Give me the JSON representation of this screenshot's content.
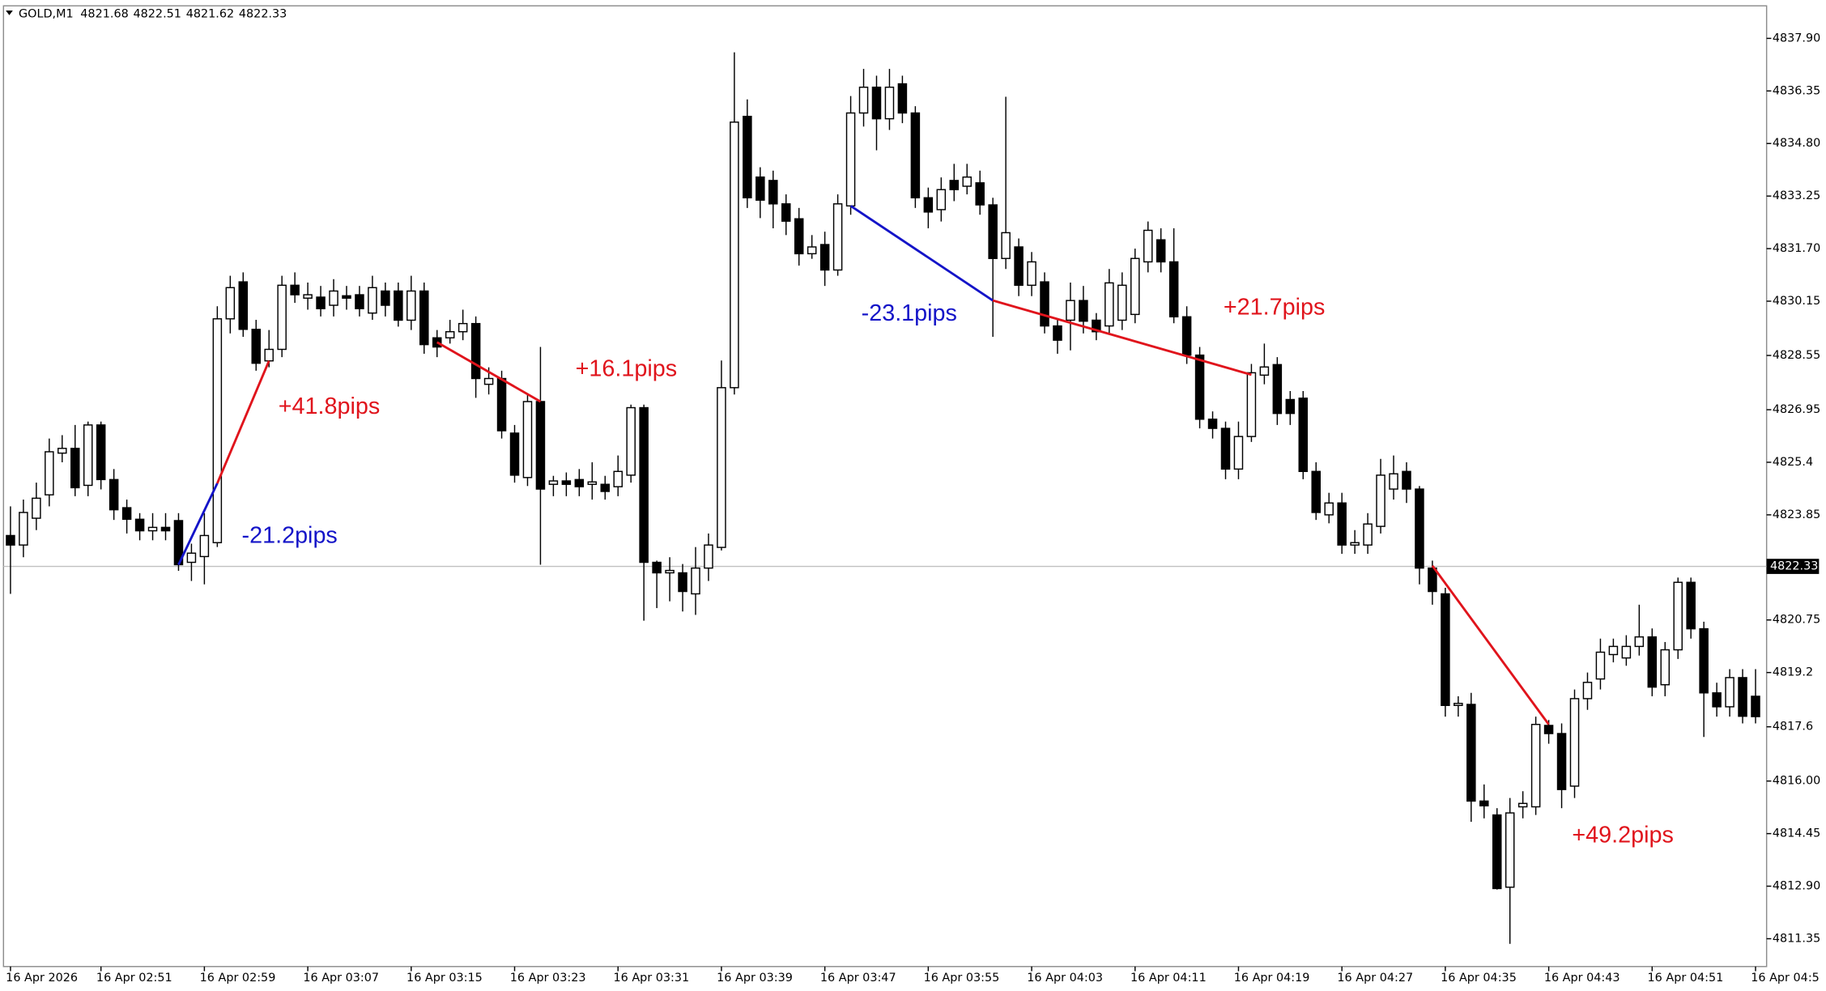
{
  "chart_data": {
    "type": "candlestick",
    "symbol": "GOLD,M1",
    "ohlc": [
      4821.68,
      4822.51,
      4821.62,
      4822.33
    ],
    "last_price": 4822.33,
    "categories": [
      "16 Apr 2026",
      null,
      null,
      null,
      null,
      null,
      null,
      "16 Apr 02:51",
      null,
      null,
      null,
      null,
      null,
      null,
      null,
      "16 Apr 02:59",
      null,
      null,
      null,
      null,
      null,
      null,
      null,
      "16 Apr 03:07",
      null,
      null,
      null,
      null,
      null,
      null,
      null,
      "16 Apr 03:15",
      null,
      null,
      null,
      null,
      null,
      null,
      null,
      "16 Apr 03:23",
      null,
      null,
      null,
      null,
      null,
      null,
      null,
      "16 Apr 03:31",
      null,
      null,
      null,
      null,
      null,
      null,
      null,
      "16 Apr 03:39",
      null,
      null,
      null,
      null,
      null,
      null,
      null,
      "16 Apr 03:47",
      null,
      null,
      null,
      null,
      null,
      null,
      null,
      "16 Apr 03:55",
      null,
      null,
      null,
      null,
      null,
      null,
      null,
      "16 Apr 04:03",
      null,
      null,
      null,
      null,
      null,
      null,
      null,
      "16 Apr 04:11",
      null,
      null,
      null,
      null,
      null,
      null,
      null,
      "16 Apr 04:19",
      null,
      null,
      null,
      null,
      null,
      null,
      null,
      "16 Apr 04:27",
      null,
      null,
      null,
      null,
      null,
      null,
      null,
      "16 Apr 04:35",
      null,
      null,
      null,
      null,
      null,
      null,
      null,
      "16 Apr 04:43",
      null,
      null,
      null,
      null,
      null,
      null,
      null,
      "16 Apr 04:51",
      null,
      null,
      null,
      null,
      null,
      null,
      null,
      "16 Apr 04:5"
    ],
    "open": [
      4823.24,
      4822.96,
      4823.75,
      4824.44,
      4825.67,
      4825.81,
      4824.72,
      4826.5,
      4824.89,
      4824.06,
      4823.72,
      4823.38,
      4823.48,
      4823.68,
      4822.45,
      4822.62,
      4823.03,
      4829.63,
      4830.72,
      4829.32,
      4828.39,
      4828.73,
      4830.62,
      4830.24,
      4830.27,
      4830.03,
      4830.31,
      4830.34,
      4829.8,
      4830.45,
      4830.45,
      4829.59,
      4830.45,
      4829.07,
      4829.07,
      4829.25,
      4829.49,
      4827.7,
      4827.87,
      4826.26,
      4824.95,
      4827.19,
      4824.75,
      4824.85,
      4824.89,
      4824.75,
      4824.75,
      4824.68,
      4825.02,
      4827.01,
      4822.45,
      4822.14,
      4822.14,
      4821.52,
      4822.28,
      4822.89,
      4827.6,
      4835.6,
      4833.81,
      4833.71,
      4833.02,
      4832.58,
      4831.55,
      4831.82,
      4831.07,
      4832.96,
      4835.7,
      4836.46,
      4835.53,
      4836.56,
      4835.7,
      4833.2,
      4832.85,
      4833.71,
      4833.54,
      4833.64,
      4832.99,
      4831.41,
      4831.75,
      4830.62,
      4830.72,
      4829.42,
      4829.59,
      4830.17,
      4829.59,
      4829.42,
      4829.59,
      4829.76,
      4831.31,
      4831.96,
      4831.31,
      4829.69,
      4828.56,
      4826.67,
      4826.4,
      4825.2,
      4826.16,
      4827.97,
      4828.28,
      4827.25,
      4827.29,
      4825.13,
      4823.85,
      4824.2,
      4822.96,
      4822.96,
      4823.51,
      4824.61,
      4825.13,
      4824.61,
      4822.28,
      4821.52,
      4818.23,
      4818.26,
      4815.41,
      4815.0,
      4812.87,
      4815.24,
      4815.24,
      4817.64,
      4817.4,
      4815.85,
      4818.43,
      4819.01,
      4819.73,
      4819.63,
      4819.97,
      4820.25,
      4818.84,
      4819.87,
      4821.86,
      4820.49,
      4818.6,
      4818.19,
      4819.05,
      4818.5
    ],
    "high": [
      4824.1,
      4824.3,
      4824.8,
      4826.1,
      4826.2,
      4826.5,
      4826.6,
      4826.6,
      4825.2,
      4824.3,
      4823.9,
      4823.9,
      4823.9,
      4823.9,
      4823.0,
      4823.9,
      4830.0,
      4830.9,
      4831.0,
      4829.6,
      4829.3,
      4830.9,
      4831.0,
      4830.7,
      4830.6,
      4830.8,
      4830.6,
      4830.6,
      4830.9,
      4830.7,
      4830.7,
      4830.9,
      4830.7,
      4829.3,
      4829.6,
      4829.9,
      4829.7,
      4828.2,
      4828.1,
      4826.5,
      4827.4,
      4828.8,
      4825.0,
      4825.1,
      4825.2,
      4825.4,
      4825.0,
      4825.6,
      4827.1,
      4827.1,
      4822.5,
      4822.6,
      4822.4,
      4822.9,
      4823.3,
      4828.4,
      4837.49,
      4836.1,
      4834.1,
      4834.0,
      4833.3,
      4832.9,
      4832.1,
      4832.2,
      4833.3,
      4836.2,
      4837.0,
      4836.8,
      4837.0,
      4836.8,
      4835.9,
      4833.5,
      4833.8,
      4834.2,
      4834.2,
      4834.0,
      4833.2,
      4836.18,
      4832.0,
      4831.6,
      4831.0,
      4829.6,
      4830.7,
      4830.6,
      4829.8,
      4831.1,
      4831.0,
      4831.7,
      4832.5,
      4832.3,
      4832.3,
      4830.0,
      4828.8,
      4826.9,
      4826.6,
      4826.6,
      4828.3,
      4828.9,
      4828.5,
      4827.5,
      4827.5,
      4825.4,
      4824.5,
      4824.5,
      4823.4,
      4823.9,
      4825.5,
      4825.6,
      4825.4,
      4824.7,
      4822.5,
      4821.7,
      4818.5,
      4818.6,
      4815.9,
      4815.2,
      4815.5,
      4815.7,
      4817.9,
      4817.8,
      4817.7,
      4818.7,
      4819.2,
      4820.2,
      4820.2,
      4820.3,
      4821.2,
      4820.5,
      4820.1,
      4822.0,
      4822.0,
      4820.7,
      4818.9,
      4819.3,
      4819.3,
      4819.3
    ],
    "low": [
      4821.52,
      4822.6,
      4823.4,
      4824.1,
      4825.4,
      4824.4,
      4824.4,
      4824.6,
      4823.7,
      4823.3,
      4823.1,
      4823.1,
      4823.1,
      4822.2,
      4821.9,
      4821.8,
      4822.9,
      4829.2,
      4829.1,
      4828.1,
      4828.2,
      4828.5,
      4830.1,
      4829.9,
      4829.7,
      4829.7,
      4829.9,
      4829.7,
      4829.6,
      4829.7,
      4829.4,
      4829.3,
      4828.6,
      4828.5,
      4828.9,
      4829.0,
      4827.3,
      4827.4,
      4826.1,
      4824.8,
      4824.7,
      4822.38,
      4824.4,
      4824.4,
      4824.4,
      4824.3,
      4824.3,
      4824.4,
      4824.8,
      4820.73,
      4821.1,
      4821.3,
      4821.0,
      4820.9,
      4821.9,
      4822.8,
      4827.4,
      4832.9,
      4832.6,
      4832.3,
      4832.1,
      4831.2,
      4831.4,
      4830.6,
      4830.9,
      4832.7,
      4835.3,
      4834.6,
      4835.2,
      4835.4,
      4832.9,
      4832.3,
      4832.5,
      4833.1,
      4833.3,
      4832.7,
      4829.1,
      4831.1,
      4830.3,
      4830.3,
      4829.2,
      4828.6,
      4828.7,
      4829.2,
      4829.0,
      4829.2,
      4829.3,
      4829.5,
      4831.0,
      4831.0,
      4829.5,
      4828.3,
      4826.4,
      4826.1,
      4824.9,
      4824.9,
      4826.0,
      4827.7,
      4826.5,
      4826.5,
      4824.9,
      4823.7,
      4823.6,
      4822.7,
      4822.7,
      4822.7,
      4823.3,
      4824.3,
      4824.2,
      4821.8,
      4821.2,
      4817.9,
      4817.9,
      4814.8,
      4814.9,
      4812.8,
      4811.2,
      4814.9,
      4815.0,
      4817.1,
      4815.2,
      4815.5,
      4818.1,
      4818.7,
      4819.5,
      4819.4,
      4819.7,
      4818.5,
      4818.5,
      4819.6,
      4820.2,
      4817.3,
      4817.9,
      4817.9,
      4817.7,
      4817.7
    ],
    "close": [
      4822.96,
      4823.92,
      4824.34,
      4825.71,
      4825.81,
      4824.65,
      4826.5,
      4824.89,
      4824.0,
      4823.72,
      4823.38,
      4823.48,
      4823.38,
      4822.38,
      4822.72,
      4823.24,
      4829.63,
      4830.55,
      4829.32,
      4828.32,
      4828.73,
      4830.62,
      4830.34,
      4830.34,
      4829.93,
      4830.45,
      4830.24,
      4829.93,
      4830.55,
      4830.03,
      4829.59,
      4830.45,
      4828.87,
      4828.8,
      4829.25,
      4829.49,
      4827.87,
      4827.87,
      4826.33,
      4825.02,
      4827.19,
      4824.61,
      4824.85,
      4824.75,
      4824.68,
      4824.82,
      4824.54,
      4825.13,
      4827.01,
      4822.45,
      4822.14,
      4822.21,
      4821.59,
      4822.28,
      4822.96,
      4827.6,
      4835.43,
      4833.2,
      4833.13,
      4833.02,
      4832.51,
      4831.55,
      4831.75,
      4831.07,
      4833.02,
      4835.7,
      4836.46,
      4835.53,
      4836.46,
      4835.7,
      4833.2,
      4832.78,
      4833.44,
      4833.44,
      4833.81,
      4832.99,
      4831.41,
      4832.17,
      4830.62,
      4831.31,
      4829.42,
      4829.0,
      4830.17,
      4829.56,
      4829.25,
      4830.69,
      4830.62,
      4831.41,
      4832.24,
      4831.31,
      4829.69,
      4828.56,
      4826.67,
      4826.4,
      4825.2,
      4826.16,
      4828.04,
      4828.21,
      4826.84,
      4826.84,
      4825.13,
      4823.92,
      4824.2,
      4822.96,
      4823.03,
      4823.58,
      4825.02,
      4825.06,
      4824.61,
      4822.28,
      4821.59,
      4818.23,
      4818.29,
      4815.41,
      4815.27,
      4812.83,
      4815.06,
      4815.34,
      4817.67,
      4817.4,
      4815.75,
      4818.43,
      4818.91,
      4819.8,
      4819.97,
      4819.97,
      4820.25,
      4818.77,
      4819.87,
      4821.86,
      4820.49,
      4818.6,
      4818.19,
      4819.05,
      4817.91,
      4817.9
    ],
    "up_color": "#ffffff",
    "down_color": "#000000",
    "ylim": [
      4810.53,
      4838.86
    ],
    "yticks": [
      {
        "value": 4837.9,
        "label": "4837.90"
      },
      4836.35,
      {
        "value": 4834.8,
        "label": "4834.80"
      },
      4833.25,
      {
        "value": 4831.7,
        "label": "4831.70"
      },
      4830.15,
      4828.55,
      4826.95,
      4825.4,
      4823.85,
      4820.75,
      4819.2,
      4817.6,
      {
        "value": 4816.0,
        "label": "4816.00"
      },
      4814.45,
      {
        "value": 4812.9,
        "label": "4812.90"
      },
      4811.35
    ],
    "annotations": [
      {
        "text": "-21.2pips",
        "color": "#1414c8",
        "from": [
          13,
          4822.38
        ],
        "to": [
          16,
          4824.78
        ]
      },
      {
        "text": "+41.8pips",
        "color": "#e0141c",
        "from": [
          16,
          4824.78
        ],
        "to": [
          20,
          4828.39
        ]
      },
      {
        "text": "+16.1pips",
        "color": "#e0141c",
        "from": [
          33,
          4828.94
        ],
        "to": [
          41,
          4827.19
        ]
      },
      {
        "text": "-23.1pips",
        "color": "#1414c8",
        "from": [
          65,
          4832.96
        ],
        "to": [
          76,
          4830.17
        ]
      },
      {
        "text": "+21.7pips",
        "color": "#e0141c",
        "from": [
          76,
          4830.17
        ],
        "to": [
          96,
          4827.98
        ]
      },
      {
        "text": "+49.2pips",
        "color": "#e0141c",
        "from": [
          110,
          4822.35
        ],
        "to": [
          119,
          4817.67
        ]
      }
    ]
  }
}
